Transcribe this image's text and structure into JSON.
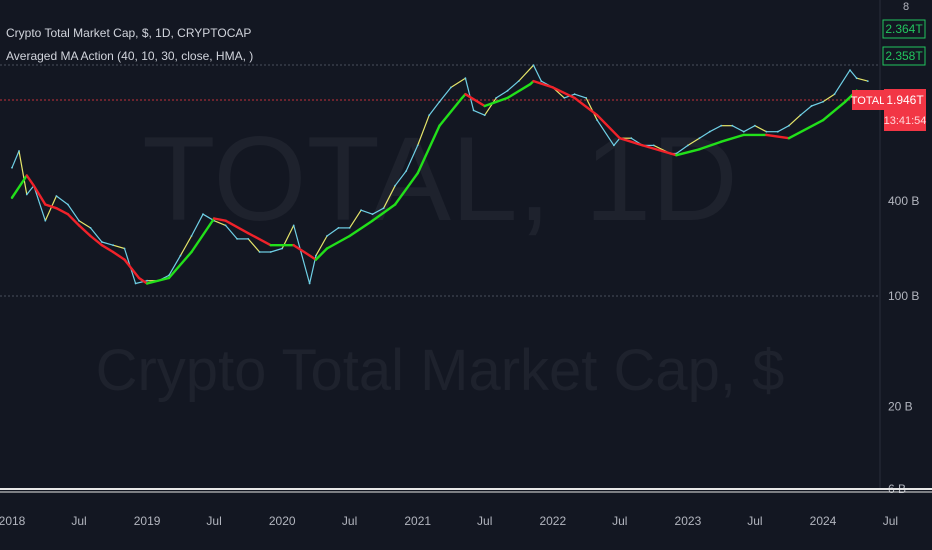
{
  "header": {
    "symbol_line": "Crypto Total Market Cap, $, 1D, CRYPTOCAP",
    "indicator_line": "Averaged MA Action (40, 10, 30, close, HMA, )"
  },
  "watermark": {
    "ticker": "TOTAL, 1D",
    "name": "Crypto Total Market Cap, $"
  },
  "price_tags": {
    "tag_top": "2.364T",
    "tag_second": "2.358T",
    "symbol_tag": "TOTAL",
    "last_price": "1.946T",
    "countdown": "13:41:54",
    "clipped_top_label": "8"
  },
  "colors": {
    "background": "#131722",
    "up_ma": "#22e01a",
    "down_ma": "#f0222a",
    "price_line": "#6fd0e6",
    "price_line_alt": "#e6e66a",
    "last_price_tag": "#f23645",
    "green_tag_border": "#22c55e"
  },
  "chart_data": {
    "type": "line",
    "scale": "log",
    "title": "Crypto Total Market Cap, $, 1D, CRYPTOCAP",
    "y_ticks": [
      "400 B",
      "100 B",
      "20 B",
      "6 B"
    ],
    "x_ticks": [
      "2018",
      "Jul",
      "2019",
      "Jul",
      "2020",
      "Jul",
      "2021",
      "Jul",
      "2022",
      "Jul",
      "2023",
      "Jul",
      "2024",
      "Jul"
    ],
    "grid": false,
    "series": [
      {
        "name": "Crypto Total Market Cap",
        "x": [
          "2018-01-01",
          "2018-01-20",
          "2018-02-10",
          "2018-03-01",
          "2018-04-01",
          "2018-05-01",
          "2018-06-01",
          "2018-07-01",
          "2018-08-01",
          "2018-09-01",
          "2018-10-01",
          "2018-11-01",
          "2018-12-01",
          "2019-01-01",
          "2019-02-01",
          "2019-03-01",
          "2019-04-01",
          "2019-05-01",
          "2019-06-01",
          "2019-07-01",
          "2019-08-01",
          "2019-09-01",
          "2019-10-01",
          "2019-11-01",
          "2019-12-01",
          "2020-01-01",
          "2020-02-01",
          "2020-03-15",
          "2020-04-01",
          "2020-05-01",
          "2020-06-01",
          "2020-07-01",
          "2020-08-01",
          "2020-09-01",
          "2020-10-01",
          "2020-11-01",
          "2020-12-01",
          "2021-01-01",
          "2021-02-01",
          "2021-03-01",
          "2021-04-01",
          "2021-05-10",
          "2021-06-01",
          "2021-07-01",
          "2021-08-01",
          "2021-09-01",
          "2021-10-01",
          "2021-11-10",
          "2021-12-01",
          "2022-01-01",
          "2022-02-01",
          "2022-03-01",
          "2022-04-01",
          "2022-05-01",
          "2022-06-15",
          "2022-07-01",
          "2022-08-01",
          "2022-09-01",
          "2022-10-01",
          "2022-11-15",
          "2022-12-01",
          "2023-01-01",
          "2023-02-01",
          "2023-03-01",
          "2023-04-01",
          "2023-05-01",
          "2023-06-01",
          "2023-07-01",
          "2023-08-01",
          "2023-09-01",
          "2023-10-01",
          "2023-11-01",
          "2023-12-01",
          "2024-01-01",
          "2024-02-01",
          "2024-03-14",
          "2024-04-01",
          "2024-05-01"
        ],
        "y": [
          650,
          830,
          440,
          500,
          300,
          430,
          380,
          300,
          270,
          220,
          210,
          200,
          120,
          125,
          125,
          135,
          180,
          240,
          330,
          300,
          280,
          230,
          230,
          190,
          190,
          200,
          280,
          120,
          180,
          240,
          270,
          270,
          350,
          330,
          360,
          500,
          620,
          900,
          1400,
          1700,
          2100,
          2400,
          1500,
          1400,
          1800,
          2000,
          2300,
          2900,
          2300,
          2100,
          1800,
          1900,
          1800,
          1300,
          900,
          1000,
          1000,
          900,
          900,
          800,
          800,
          900,
          1000,
          1100,
          1200,
          1200,
          1100,
          1200,
          1100,
          1100,
          1200,
          1400,
          1600,
          1700,
          1900,
          2700,
          2400,
          2300
        ]
      },
      {
        "name": "Averaged MA Action (40, 10, 30, close, HMA, )",
        "x": [
          "2018-01-01",
          "2018-02-10",
          "2018-03-01",
          "2018-04-01",
          "2018-05-01",
          "2018-06-01",
          "2018-07-01",
          "2018-08-01",
          "2018-09-01",
          "2018-10-01",
          "2018-11-01",
          "2018-12-10",
          "2019-01-01",
          "2019-03-01",
          "2019-05-01",
          "2019-07-01",
          "2019-08-01",
          "2019-10-01",
          "2019-12-01",
          "2020-02-01",
          "2020-04-01",
          "2020-05-01",
          "2020-07-01",
          "2020-09-01",
          "2020-11-01",
          "2021-01-01",
          "2021-03-01",
          "2021-05-01",
          "2021-05-10",
          "2021-07-01",
          "2021-09-01",
          "2021-11-01",
          "2021-11-10",
          "2022-01-01",
          "2022-03-01",
          "2022-05-01",
          "2022-07-01",
          "2022-09-01",
          "2022-11-15",
          "2022-12-01",
          "2023-02-01",
          "2023-04-01",
          "2023-06-01",
          "2023-08-01",
          "2023-10-01",
          "2024-01-01",
          "2024-03-01",
          "2024-04-01"
        ],
        "y": [
          420,
          580,
          500,
          380,
          360,
          330,
          280,
          240,
          210,
          190,
          170,
          130,
          120,
          130,
          190,
          310,
          300,
          250,
          210,
          210,
          170,
          200,
          240,
          300,
          380,
          600,
          1200,
          1800,
          1900,
          1600,
          1800,
          2200,
          2300,
          2100,
          1800,
          1400,
          1000,
          900,
          800,
          780,
          850,
          950,
          1050,
          1050,
          1000,
          1300,
          1700,
          2000
        ]
      }
    ]
  }
}
